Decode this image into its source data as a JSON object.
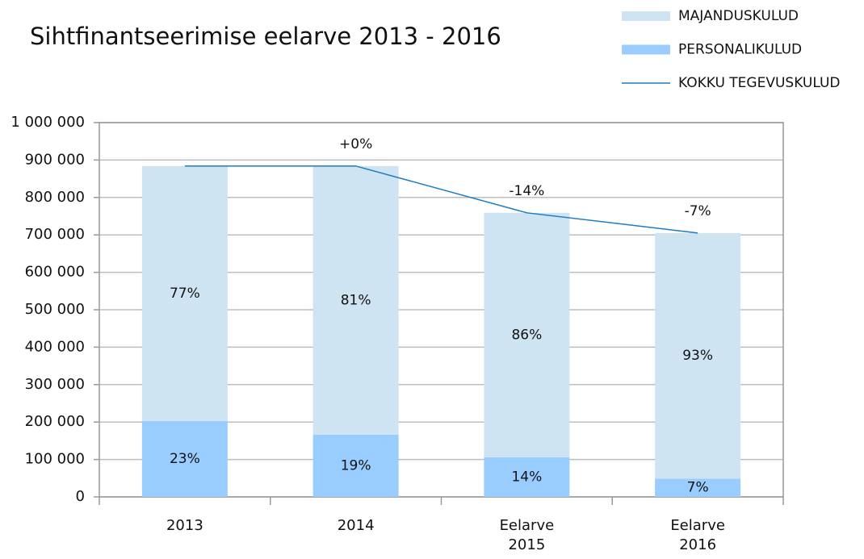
{
  "chart_data": {
    "type": "bar",
    "title": "Sihtfinantseerimise eelarve 2013 - 2016",
    "categories": [
      "2013",
      "2014",
      "Eelarve 2015",
      "Eelarve 2016"
    ],
    "series": [
      {
        "name": "MAJANDUSKULUD",
        "color": "#cfe4f3",
        "values": [
          681000,
          718000,
          653000,
          656000
        ],
        "share_labels": [
          "77%",
          "81%",
          "86%",
          "93%"
        ]
      },
      {
        "name": "PERSONALIKULUD",
        "color": "#99ccff",
        "values": [
          203000,
          166000,
          106000,
          49000
        ],
        "share_labels": [
          "23%",
          "19%",
          "14%",
          "7%"
        ]
      },
      {
        "name": "KOKKU TEGEVUSKULUD",
        "type": "line",
        "color": "#1a7cc1",
        "values": [
          884000,
          884000,
          759000,
          705000
        ],
        "change_labels": [
          null,
          "+0%",
          "-14%",
          "-7%"
        ]
      }
    ],
    "ylim": [
      0,
      1000000
    ],
    "yticks": [
      0,
      {
        "value": 100000,
        "label": "100 000"
      },
      {
        "value": 200000,
        "label": "200 000"
      },
      {
        "value": 300000,
        "label": "300 000"
      },
      {
        "value": 400000,
        "label": "400 000"
      },
      {
        "value": 500000,
        "label": "500 000"
      },
      {
        "value": 600000,
        "label": "600 000"
      },
      {
        "value": 700000,
        "label": "700 000"
      },
      {
        "value": 800000,
        "label": "800 000"
      },
      {
        "value": 900000,
        "label": "900 000"
      },
      {
        "value": 1000000,
        "label": "1 000 000"
      }
    ],
    "grid": true
  }
}
